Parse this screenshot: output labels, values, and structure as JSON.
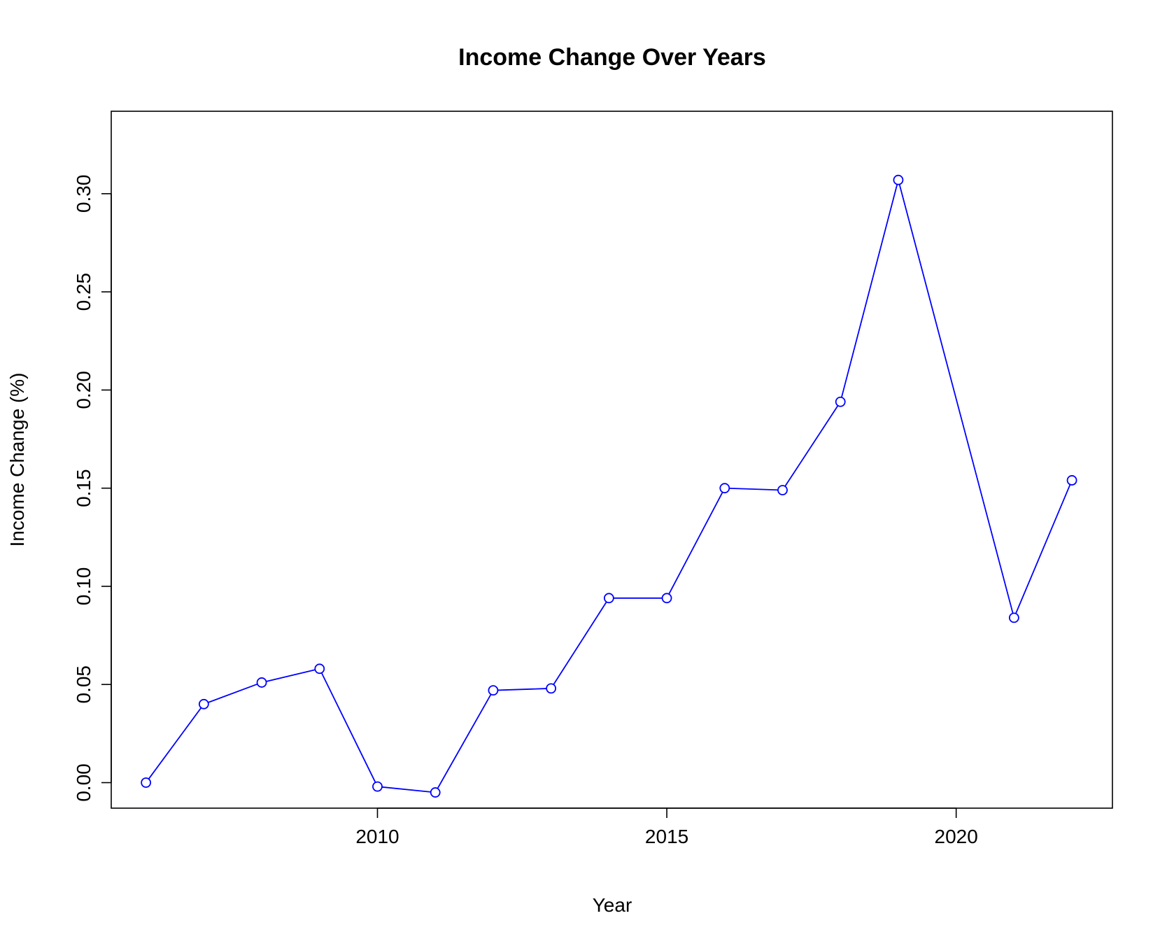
{
  "chart_data": {
    "type": "line",
    "title": "Income Change Over Years",
    "xlabel": "Year",
    "ylabel": "Income Change (%)",
    "xlim": [
      2005.4,
      2022.7
    ],
    "ylim": [
      -0.013,
      0.342
    ],
    "x_ticks": [
      2010,
      2015,
      2020
    ],
    "x_tick_labels": [
      "2010",
      "2015",
      "2020"
    ],
    "y_ticks": [
      0.0,
      0.05,
      0.1,
      0.15,
      0.2,
      0.25,
      0.3
    ],
    "y_tick_labels": [
      "0.00",
      "0.05",
      "0.10",
      "0.15",
      "0.20",
      "0.25",
      "0.30"
    ],
    "grid": false,
    "legend": "none",
    "series": [
      {
        "color": "#0000ff",
        "marker": "open-circle",
        "x": [
          2006,
          2007,
          2008,
          2009,
          2010,
          2011,
          2012,
          2013,
          2014,
          2015,
          2016,
          2017,
          2018,
          2019,
          2021,
          2022
        ],
        "y": [
          0.0,
          0.04,
          0.051,
          0.058,
          -0.002,
          -0.005,
          0.047,
          0.048,
          0.094,
          0.094,
          0.15,
          0.149,
          0.194,
          0.307,
          0.084,
          0.154
        ]
      }
    ]
  }
}
